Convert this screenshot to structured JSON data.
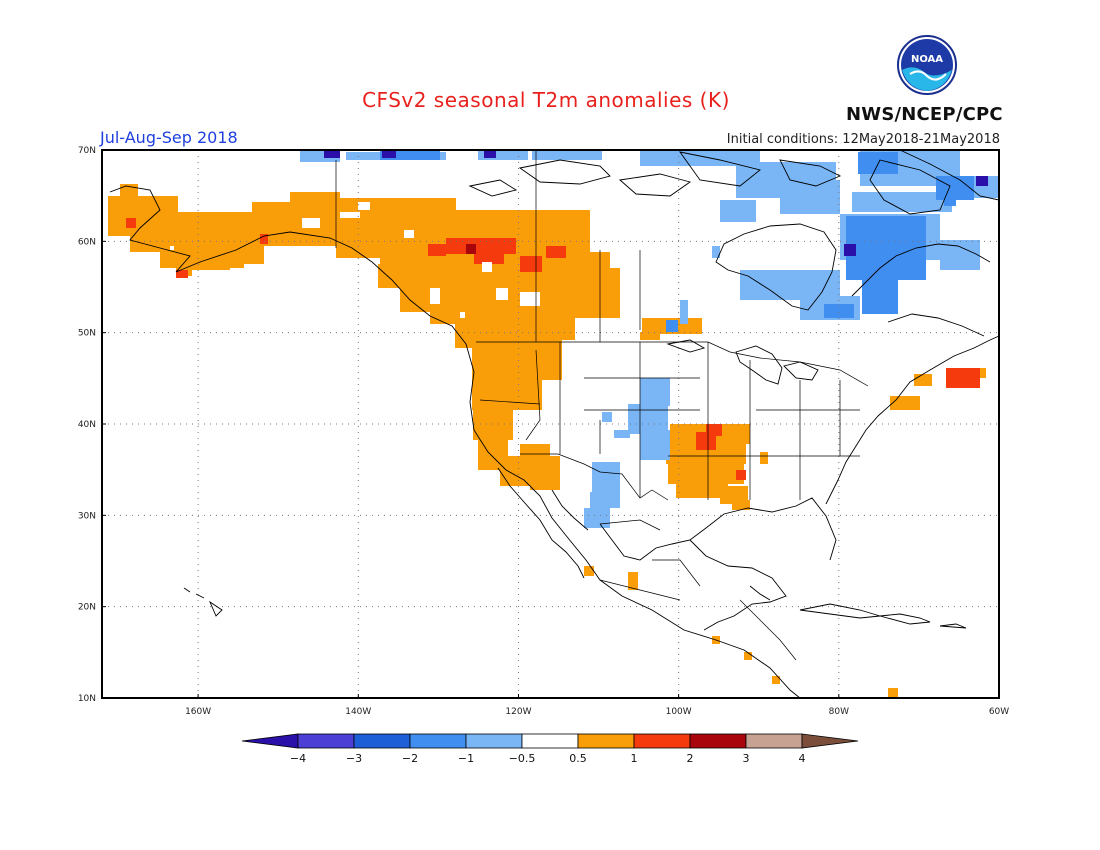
{
  "header": {
    "title": "CFSv2 seasonal T2m anomalies (K)",
    "period": "Jul-Aug-Sep 2018",
    "initial_conditions": "Initial conditions: 12May2018-21May2018",
    "agency": "NWS/NCEP/CPC",
    "logo_text": "NOAA"
  },
  "map": {
    "lon_range": [
      -172,
      -60
    ],
    "lat_range": [
      10,
      70
    ],
    "lat_ticks": [
      {
        "value": 70,
        "label": "70N"
      },
      {
        "value": 60,
        "label": "60N"
      },
      {
        "value": 50,
        "label": "50N"
      },
      {
        "value": 40,
        "label": "40N"
      },
      {
        "value": 30,
        "label": "30N"
      },
      {
        "value": 20,
        "label": "20N"
      },
      {
        "value": 10,
        "label": "10N"
      }
    ],
    "lon_ticks": [
      {
        "value": -160,
        "label": "160W"
      },
      {
        "value": -140,
        "label": "140W"
      },
      {
        "value": -120,
        "label": "120W"
      },
      {
        "value": -100,
        "label": "100W"
      },
      {
        "value": -80,
        "label": "80W"
      },
      {
        "value": -60,
        "label": "60W"
      }
    ],
    "grid": true
  },
  "colorbar": {
    "colors": [
      "#2a0fa8",
      "#4b3fd6",
      "#1e5fd8",
      "#3f8ef0",
      "#7ab6f6",
      "#ffffff",
      "#f99d09",
      "#f53b0d",
      "#a8060c",
      "#c7a292",
      "#7a4e3a"
    ],
    "labels": [
      "-4",
      "-3",
      "-2",
      "-1",
      "-0.5",
      "0.5",
      "1",
      "2",
      "3",
      "4"
    ]
  },
  "anomaly_colors": {
    "warm1": "#f99d09",
    "warm2": "#f53b0d",
    "warm3": "#a8060c",
    "cool1": "#7ab6f6",
    "cool2": "#3f8ef0",
    "cool4": "#2a0fa8"
  }
}
